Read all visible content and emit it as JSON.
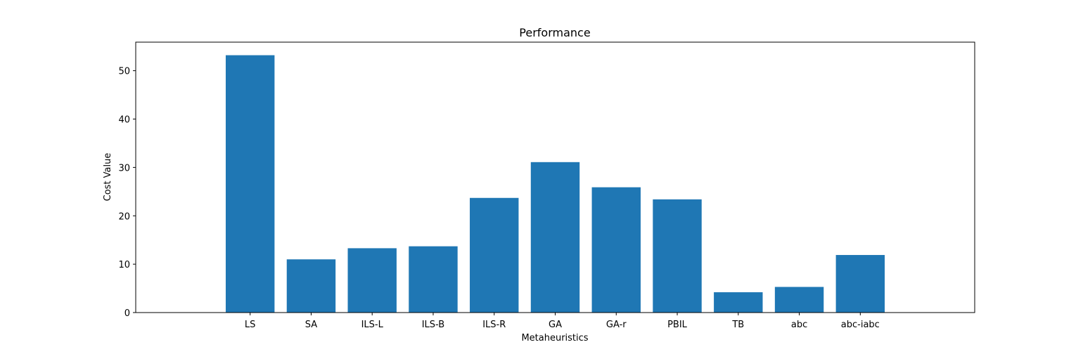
{
  "chart_data": {
    "type": "bar",
    "title": "Performance",
    "xlabel": "Metaheuristics",
    "ylabel": "Cost Value",
    "categories": [
      "LS",
      "SA",
      "ILS-L",
      "ILS-B",
      "ILS-R",
      "GA",
      "GA-r",
      "PBIL",
      "TB",
      "abc",
      "abc-iabc"
    ],
    "values": [
      53.2,
      11.0,
      13.3,
      13.7,
      23.7,
      31.1,
      25.9,
      23.4,
      4.2,
      5.3,
      11.9
    ],
    "ylim": [
      0,
      55.9
    ],
    "yticks": [
      0,
      10,
      20,
      30,
      40,
      50
    ],
    "grid": false,
    "legend": null,
    "bar_color": "#1f77b4"
  }
}
